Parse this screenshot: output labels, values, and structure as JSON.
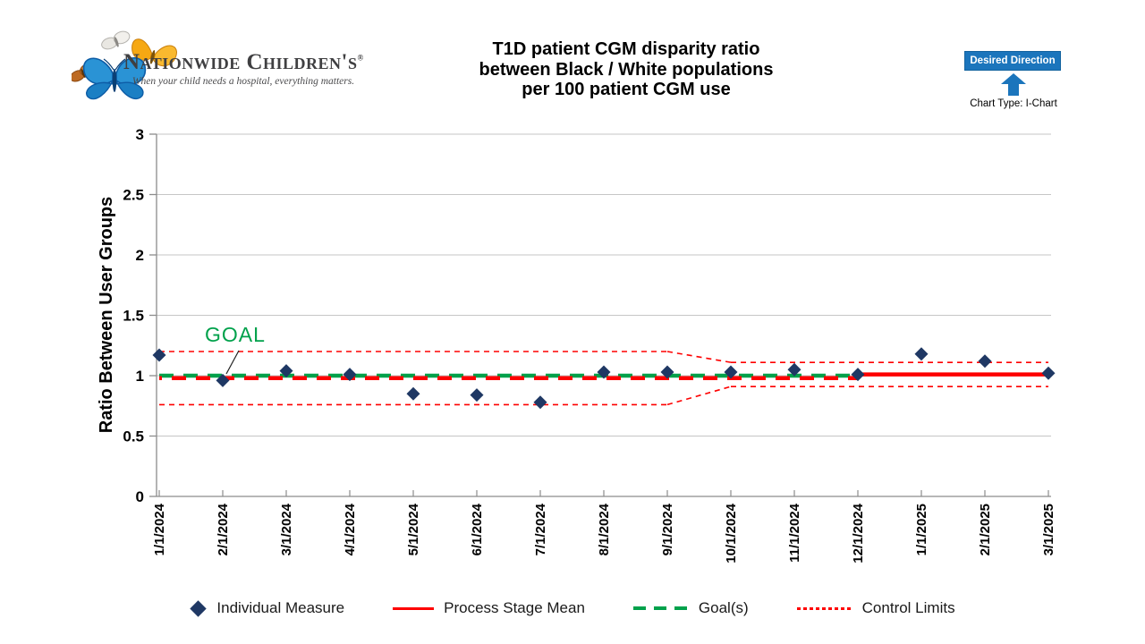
{
  "logo": {
    "name": "Nationwide Children's",
    "registered_mark": "®",
    "tagline": "When your child needs a hospital, everything matters."
  },
  "header": {
    "title_lines": [
      "T1D patient CGM disparity ratio",
      "between Black / White populations",
      "per 100 patient CGM use"
    ]
  },
  "desired_direction": {
    "badge_label": "Desired Direction",
    "badge_color": "#1b75bc",
    "chart_type_label": "Chart Type: I-Chart"
  },
  "chart_data": {
    "type": "line",
    "subtype": "individuals-control-chart",
    "title": "T1D patient CGM disparity ratio between Black / White populations per 100 patient CGM use",
    "xlabel": "",
    "ylabel": "Ratio Between User Groups",
    "ylim": [
      0,
      3
    ],
    "yticks": [
      0,
      0.5,
      1,
      1.5,
      2,
      2.5,
      3
    ],
    "grid": true,
    "legend_position": "bottom",
    "categories": [
      "1/1/2024",
      "2/1/2024",
      "3/1/2024",
      "4/1/2024",
      "5/1/2024",
      "6/1/2024",
      "7/1/2024",
      "8/1/2024",
      "9/1/2024",
      "10/1/2024",
      "11/1/2024",
      "12/1/2024",
      "1/1/2025",
      "2/1/2025",
      "3/1/2025"
    ],
    "series": [
      {
        "name": "Individual Measure",
        "type": "scatter",
        "marker": "diamond",
        "color": "#1f3864",
        "values": [
          1.17,
          0.96,
          1.04,
          1.01,
          0.85,
          0.84,
          0.78,
          1.03,
          1.03,
          1.03,
          1.05,
          1.01,
          1.18,
          1.12,
          1.02
        ]
      },
      {
        "name": "Process Stage Mean",
        "type": "line",
        "color": "#fe0000",
        "segments": [
          {
            "style": "dashed",
            "from": 0,
            "to": 11,
            "start": 0.98,
            "end": 0.98
          },
          {
            "style": "solid",
            "from": 11,
            "to": 14,
            "start": 1.01,
            "end": 1.01
          }
        ]
      },
      {
        "name": "Goal(s)",
        "type": "line",
        "color": "#00a14b",
        "segments": [
          {
            "style": "dashed",
            "from": 0,
            "to": 11,
            "start": 1.0,
            "end": 1.0
          }
        ]
      },
      {
        "name": "Control Limits",
        "type": "line",
        "color": "#fe0000",
        "style": "dotted",
        "upper": [
          {
            "from": 0,
            "to": 8,
            "start": 1.2,
            "end": 1.2
          },
          {
            "from": 8,
            "to": 9,
            "start": 1.2,
            "end": 1.11
          },
          {
            "from": 9,
            "to": 14,
            "start": 1.11,
            "end": 1.11
          }
        ],
        "lower": [
          {
            "from": 0,
            "to": 8,
            "start": 0.76,
            "end": 0.76
          },
          {
            "from": 8,
            "to": 9,
            "start": 0.76,
            "end": 0.91
          },
          {
            "from": 9,
            "to": 14,
            "start": 0.91,
            "end": 0.91
          }
        ]
      }
    ],
    "annotations": [
      {
        "text": "GOAL",
        "color": "#00a14b",
        "points_to": "goal-line"
      }
    ]
  },
  "legend": {
    "items": [
      {
        "label": "Individual Measure",
        "swatch": "navy-diamond"
      },
      {
        "label": "Process Stage Mean",
        "swatch": "red-solid-line"
      },
      {
        "label": "Goal(s)",
        "swatch": "green-dashed-line"
      },
      {
        "label": "Control Limits",
        "swatch": "red-dotted-line"
      }
    ]
  }
}
